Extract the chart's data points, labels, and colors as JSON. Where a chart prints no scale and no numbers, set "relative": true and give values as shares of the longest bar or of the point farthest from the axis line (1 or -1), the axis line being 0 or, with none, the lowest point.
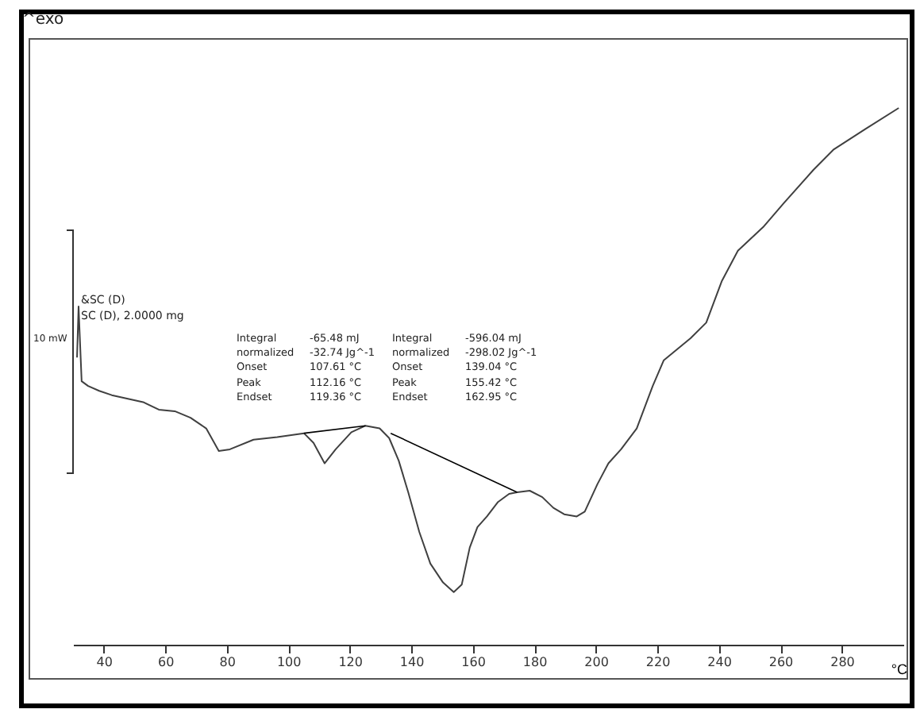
{
  "chart_data": {
    "type": "line",
    "relative": true,
    "xlabel": "°C",
    "x": [
      31.3,
      31.8,
      32.8,
      34.9,
      38.5,
      42.6,
      52.8,
      57.9,
      63.1,
      68.2,
      73.3,
      77.4,
      81.0,
      88.7,
      96.4,
      105.1,
      108.2,
      111.8,
      115.4,
      120.5,
      125.1,
      129.7,
      132.8,
      135.9,
      139.0,
      142.6,
      146.2,
      150.3,
      153.8,
      156.4,
      159.0,
      161.5,
      164.6,
      168.2,
      171.8,
      174.4,
      178.5,
      182.6,
      186.2,
      189.7,
      193.8,
      196.4,
      200.5,
      204.1,
      208.2,
      213.3,
      218.5,
      222.1,
      230.8,
      235.9,
      241.0,
      246.2,
      254.4,
      261.0,
      270.8,
      277.4,
      287.7,
      298.5
    ],
    "series": [
      {
        "color": "#404040",
        "values": [
          0.535,
          0.63,
          0.491,
          0.482,
          0.473,
          0.465,
          0.452,
          0.438,
          0.435,
          0.423,
          0.403,
          0.361,
          0.364,
          0.382,
          0.387,
          0.394,
          0.376,
          0.338,
          0.364,
          0.396,
          0.408,
          0.403,
          0.385,
          0.343,
          0.284,
          0.21,
          0.151,
          0.116,
          0.098,
          0.112,
          0.181,
          0.219,
          0.239,
          0.266,
          0.281,
          0.284,
          0.287,
          0.275,
          0.255,
          0.243,
          0.239,
          0.248,
          0.299,
          0.338,
          0.364,
          0.403,
          0.482,
          0.53,
          0.571,
          0.6,
          0.678,
          0.734,
          0.778,
          0.822,
          0.885,
          0.923,
          0.961,
          1
        ]
      },
      {
        "type": "line",
        "color": "#000000",
        "x": [
          105.1,
          125.1
        ],
        "values": [
          0.394,
          0.408
        ]
      },
      {
        "type": "line",
        "color": "#000000",
        "x": [
          133.3,
          174.4
        ],
        "values": [
          0.394,
          0.284
        ]
      }
    ],
    "xlim": [
      30,
      300
    ],
    "xticks": [
      40,
      60,
      80,
      100,
      120,
      140,
      160,
      180,
      200,
      220,
      240,
      260,
      280
    ],
    "grid": false,
    "marker": "none",
    "line_style": "solid",
    "annotations": [
      "^exo",
      "&SC (D)",
      "SC (D), 2.0000 mg",
      "10 mW",
      "Integral",
      "-65.48 mJ",
      "normalized",
      "-32.74 Jg^-1",
      "Onset",
      "107.61 °C",
      "Peak",
      "112.16 °C",
      "Endset",
      "119.36 °C",
      "Integral",
      "-596.04 mJ",
      "normalized",
      "-298.02 Jg^-1",
      "Onset",
      "139.04 °C",
      "Peak",
      "155.42 °C",
      "Endset",
      "162.95 °C"
    ]
  }
}
